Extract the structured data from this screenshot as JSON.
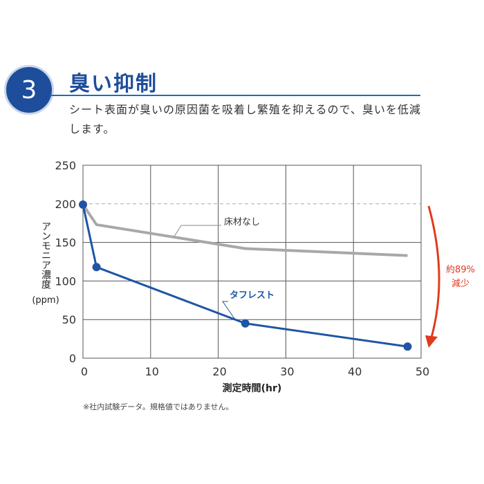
{
  "header": {
    "badge_number": "3",
    "title": "臭い抑制",
    "description": "シート表面が臭いの原因菌を吸着し繁殖を抑えるので、臭いを低減します。",
    "accent_color": "#1e4d9b"
  },
  "chart_data": {
    "type": "line",
    "title": "",
    "xlabel": "測定時間(hr)",
    "ylabel": "アンモニア濃度",
    "ylabel_unit": "(ppm)",
    "xlim": [
      0,
      50
    ],
    "ylim": [
      0,
      250
    ],
    "xticks": [
      0,
      10,
      20,
      30,
      40,
      50
    ],
    "yticks": [
      0,
      50,
      100,
      150,
      200,
      250
    ],
    "grid": true,
    "reference_line": 200,
    "series": [
      {
        "name": "床材なし",
        "color": "#a8a8a8",
        "markers": false,
        "x": [
          0,
          2,
          24,
          48
        ],
        "y": [
          199,
          173,
          142,
          133
        ]
      },
      {
        "name": "タフレスト",
        "color": "#1e55a4",
        "markers": true,
        "x": [
          0,
          2,
          24,
          48
        ],
        "y": [
          199,
          118,
          45,
          15
        ]
      }
    ],
    "annotation": {
      "text_line1": "約89%",
      "text_line2": "減少",
      "color": "#e03a1c"
    }
  },
  "footnote": "※社内試験データ。規格値ではありません。"
}
